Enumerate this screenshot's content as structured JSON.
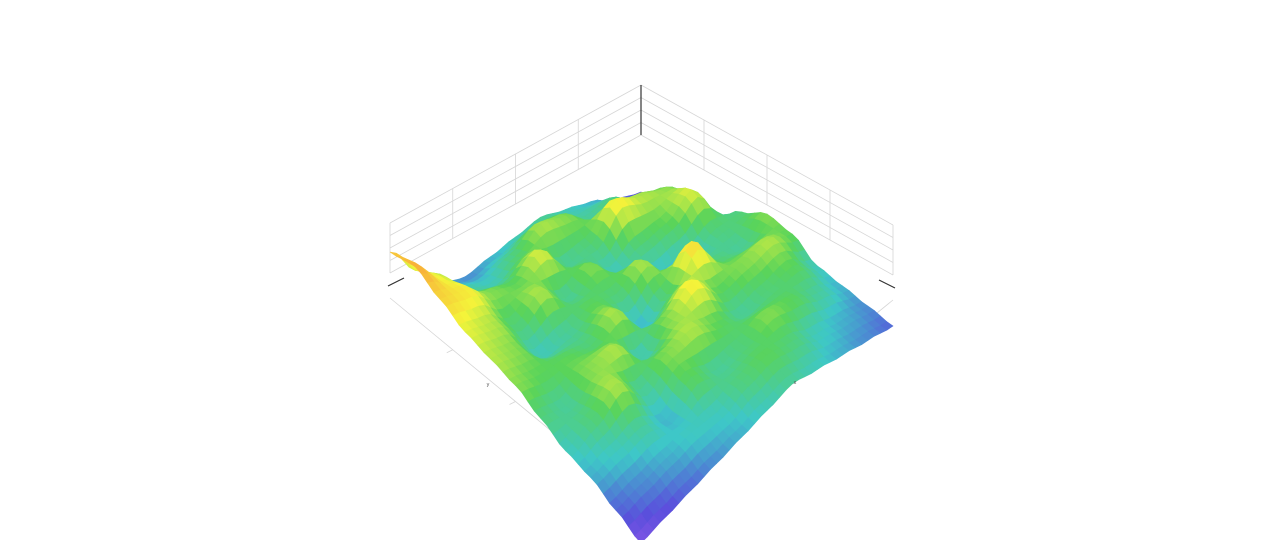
{
  "chart_data": {
    "type": "surface",
    "title": "",
    "xlabel": "x",
    "ylabel": "y",
    "zlabel": "",
    "grid": true,
    "legend": "none",
    "colorscale": [
      "#b05cf0",
      "#5a4fdc",
      "#3ec7c8",
      "#5ad45a",
      "#f4f43a",
      "#f8b13a",
      "#ee3a2e"
    ],
    "note": "",
    "z": [
      [
        0.15,
        0.25,
        0.35,
        0.3,
        0.45,
        0.55,
        0.5,
        0.35,
        0.3,
        0.25,
        0.2
      ],
      [
        0.2,
        0.3,
        0.55,
        0.65,
        0.45,
        0.4,
        0.6,
        0.5,
        0.4,
        0.3,
        0.25
      ],
      [
        0.3,
        0.45,
        0.6,
        0.5,
        0.35,
        0.45,
        0.55,
        0.45,
        0.5,
        0.35,
        0.3
      ],
      [
        0.35,
        0.4,
        0.7,
        0.45,
        0.3,
        0.75,
        0.5,
        0.4,
        0.55,
        0.45,
        0.35
      ],
      [
        0.4,
        0.55,
        0.45,
        0.35,
        0.6,
        0.45,
        0.7,
        0.5,
        0.45,
        0.5,
        0.4
      ],
      [
        0.35,
        0.6,
        0.4,
        0.55,
        0.45,
        0.3,
        0.55,
        0.6,
        0.4,
        0.45,
        0.35
      ],
      [
        0.3,
        0.45,
        0.65,
        0.4,
        0.5,
        0.6,
        0.35,
        0.55,
        0.5,
        0.35,
        0.3
      ],
      [
        0.25,
        0.35,
        0.5,
        0.6,
        0.4,
        0.45,
        0.6,
        0.4,
        0.3,
        0.35,
        0.25
      ],
      [
        0.3,
        0.4,
        0.55,
        0.45,
        0.35,
        0.5,
        0.55,
        0.6,
        0.4,
        0.3,
        0.2
      ],
      [
        0.55,
        0.65,
        0.7,
        0.6,
        0.55,
        0.5,
        0.4,
        0.45,
        0.35,
        0.25,
        0.15
      ],
      [
        0.8,
        0.85,
        0.75,
        0.65,
        0.6,
        0.55,
        0.45,
        0.35,
        0.3,
        0.2,
        0.1
      ]
    ]
  }
}
